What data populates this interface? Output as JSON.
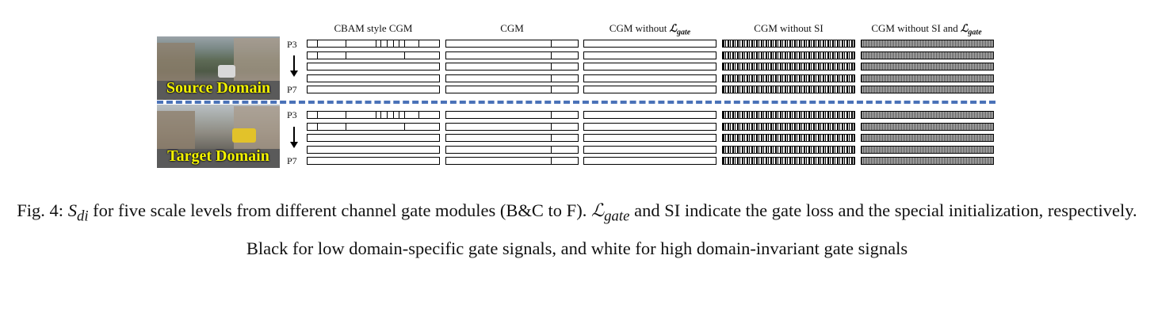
{
  "columns": [
    {
      "title": "CBAM style CGM"
    },
    {
      "title": "CGM"
    },
    {
      "title_pre": "CGM without ",
      "title_math": "ℒ",
      "title_sub": "gate"
    },
    {
      "title": "CGM without SI"
    },
    {
      "title_pre": "CGM without SI and ",
      "title_math": "ℒ",
      "title_sub": "gate"
    }
  ],
  "domains": [
    {
      "label": "Source Domain",
      "top_level": "P3",
      "bottom_level": "P7"
    },
    {
      "label": "Target Domain",
      "top_level": "P3",
      "bottom_level": "P7"
    }
  ],
  "caption": {
    "fig_label": "Fig. 4: ",
    "math_sdi": "S",
    "math_sdi_sub": "di",
    "part1": " for five scale levels from different channel gate modules (B&C to F). ",
    "math_lgate": "ℒ",
    "math_lgate_sub": "gate",
    "part2": " and SI indicate the gate loss and the special initialization, respectively. Black for low domain-specific gate signals, and white for high domain-invariant gate signals"
  },
  "colors": {
    "divider": "#4a72b8",
    "label_text": "#f2f200"
  }
}
